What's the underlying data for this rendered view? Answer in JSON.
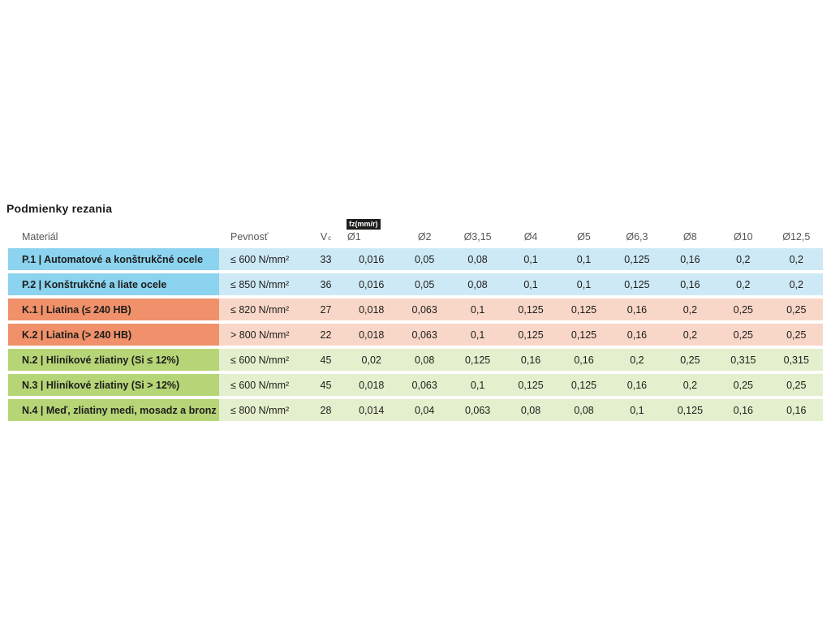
{
  "title": "Podmienky rezania",
  "colors": {
    "steel_label": "#8BD3EE",
    "steel_body": "#CDE9F6",
    "cast_iron_label": "#F0916B",
    "cast_iron_body": "#F9D7C8",
    "non_ferrous_label": "#B6D577",
    "non_ferrous_body": "#E4EFCD",
    "badge_bg": "#1D1D1B",
    "header_text": "#575756",
    "body_text": "#1D1D1B"
  },
  "table": {
    "headers": {
      "material": "Materiál",
      "strength": "Pevnosť",
      "vc_base": "V",
      "vc_sub": "c",
      "fz_unit": "fz(mm/r)",
      "diameters": [
        "Ø1",
        "Ø2",
        "Ø3,15",
        "Ø4",
        "Ø5",
        "Ø6,3",
        "Ø8",
        "Ø10",
        "Ø12,5"
      ]
    },
    "rows": [
      {
        "group": "steel",
        "material": "P.1 | Automatové a konštrukčné ocele",
        "strength": "≤ 600 N/mm²",
        "vc": "33",
        "values": [
          "0,016",
          "0,05",
          "0,08",
          "0,1",
          "0,1",
          "0,125",
          "0,16",
          "0,2",
          "0,2"
        ]
      },
      {
        "group": "steel",
        "material": "P.2 | Konštrukčné a liate ocele",
        "strength": "≤ 850 N/mm²",
        "vc": "36",
        "values": [
          "0,016",
          "0,05",
          "0,08",
          "0,1",
          "0,1",
          "0,125",
          "0,16",
          "0,2",
          "0,2"
        ]
      },
      {
        "group": "cast-iron",
        "material": "K.1 | Liatina (≤ 240 HB)",
        "strength": "≤ 820 N/mm²",
        "vc": "27",
        "values": [
          "0,018",
          "0,063",
          "0,1",
          "0,125",
          "0,125",
          "0,16",
          "0,2",
          "0,25",
          "0,25"
        ]
      },
      {
        "group": "cast-iron",
        "material": "K.2 | Liatina (> 240 HB)",
        "strength": "> 800 N/mm²",
        "vc": "22",
        "values": [
          "0,018",
          "0,063",
          "0,1",
          "0,125",
          "0,125",
          "0,16",
          "0,2",
          "0,25",
          "0,25"
        ]
      },
      {
        "group": "non-ferrous",
        "material": "N.2 | Hliníkové zliatiny (Si ≤ 12%)",
        "strength": "≤ 600 N/mm²",
        "vc": "45",
        "values": [
          "0,02",
          "0,08",
          "0,125",
          "0,16",
          "0,16",
          "0,2",
          "0,25",
          "0,315",
          "0,315"
        ]
      },
      {
        "group": "non-ferrous",
        "material": "N.3 | Hliníkové zliatiny (Si > 12%)",
        "strength": "≤ 600 N/mm²",
        "vc": "45",
        "values": [
          "0,018",
          "0,063",
          "0,1",
          "0,125",
          "0,125",
          "0,16",
          "0,2",
          "0,25",
          "0,25"
        ]
      },
      {
        "group": "non-ferrous",
        "material": "N.4 | Meď, zliatiny medi, mosadz a bronz",
        "strength": "≤ 800 N/mm²",
        "vc": "28",
        "values": [
          "0,014",
          "0,04",
          "0,063",
          "0,08",
          "0,08",
          "0,1",
          "0,125",
          "0,16",
          "0,16"
        ]
      }
    ]
  }
}
